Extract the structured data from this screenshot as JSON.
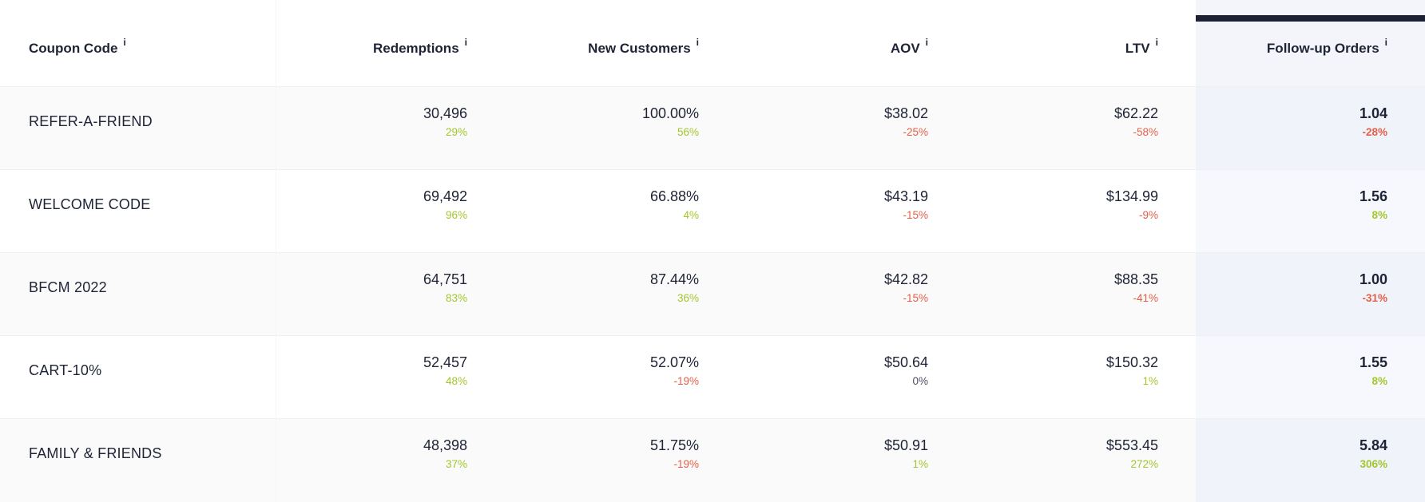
{
  "colors": {
    "text_dark": "#1e2436",
    "positive": "#a3c62e",
    "negative": "#e2604a",
    "neutral_delta": "#4a4f63",
    "row_stripe": "#fafafa",
    "highlight_header": "#f3f5fb",
    "highlight_row_odd": "#f0f3fa",
    "highlight_row_even": "#f7f8fd",
    "highlight_top_bar": "#1d2135",
    "divider": "#f0f0f0"
  },
  "table": {
    "columns": [
      {
        "label": "Coupon Code",
        "info": "i"
      },
      {
        "label": "Redemptions",
        "info": "i"
      },
      {
        "label": "New Customers",
        "info": "i"
      },
      {
        "label": "AOV",
        "info": "i"
      },
      {
        "label": "LTV",
        "info": "i"
      },
      {
        "label": "Follow-up Orders",
        "info": "i"
      }
    ],
    "rows": [
      {
        "coupon": "REFER-A-FRIEND",
        "redemptions": {
          "value": "30,496",
          "delta": "29%",
          "trend": "pos"
        },
        "new_customers": {
          "value": "100.00%",
          "delta": "56%",
          "trend": "pos"
        },
        "aov": {
          "value": "$38.02",
          "delta": "-25%",
          "trend": "neg"
        },
        "ltv": {
          "value": "$62.22",
          "delta": "-58%",
          "trend": "neg"
        },
        "followup": {
          "value": "1.04",
          "delta": "-28%",
          "trend": "neg"
        }
      },
      {
        "coupon": "WELCOME CODE",
        "redemptions": {
          "value": "69,492",
          "delta": "96%",
          "trend": "pos"
        },
        "new_customers": {
          "value": "66.88%",
          "delta": "4%",
          "trend": "pos"
        },
        "aov": {
          "value": "$43.19",
          "delta": "-15%",
          "trend": "neg"
        },
        "ltv": {
          "value": "$134.99",
          "delta": "-9%",
          "trend": "neg"
        },
        "followup": {
          "value": "1.56",
          "delta": "8%",
          "trend": "pos"
        }
      },
      {
        "coupon": "BFCM 2022",
        "redemptions": {
          "value": "64,751",
          "delta": "83%",
          "trend": "pos"
        },
        "new_customers": {
          "value": "87.44%",
          "delta": "36%",
          "trend": "pos"
        },
        "aov": {
          "value": "$42.82",
          "delta": "-15%",
          "trend": "neg"
        },
        "ltv": {
          "value": "$88.35",
          "delta": "-41%",
          "trend": "neg"
        },
        "followup": {
          "value": "1.00",
          "delta": "-31%",
          "trend": "neg"
        }
      },
      {
        "coupon": "CART-10%",
        "redemptions": {
          "value": "52,457",
          "delta": "48%",
          "trend": "pos"
        },
        "new_customers": {
          "value": "52.07%",
          "delta": "-19%",
          "trend": "neg"
        },
        "aov": {
          "value": "$50.64",
          "delta": "0%",
          "trend": "neu"
        },
        "ltv": {
          "value": "$150.32",
          "delta": "1%",
          "trend": "pos"
        },
        "followup": {
          "value": "1.55",
          "delta": "8%",
          "trend": "pos"
        }
      },
      {
        "coupon": "FAMILY & FRIENDS",
        "redemptions": {
          "value": "48,398",
          "delta": "37%",
          "trend": "pos"
        },
        "new_customers": {
          "value": "51.75%",
          "delta": "-19%",
          "trend": "neg"
        },
        "aov": {
          "value": "$50.91",
          "delta": "1%",
          "trend": "pos"
        },
        "ltv": {
          "value": "$553.45",
          "delta": "272%",
          "trend": "pos"
        },
        "followup": {
          "value": "5.84",
          "delta": "306%",
          "trend": "pos"
        }
      }
    ]
  }
}
